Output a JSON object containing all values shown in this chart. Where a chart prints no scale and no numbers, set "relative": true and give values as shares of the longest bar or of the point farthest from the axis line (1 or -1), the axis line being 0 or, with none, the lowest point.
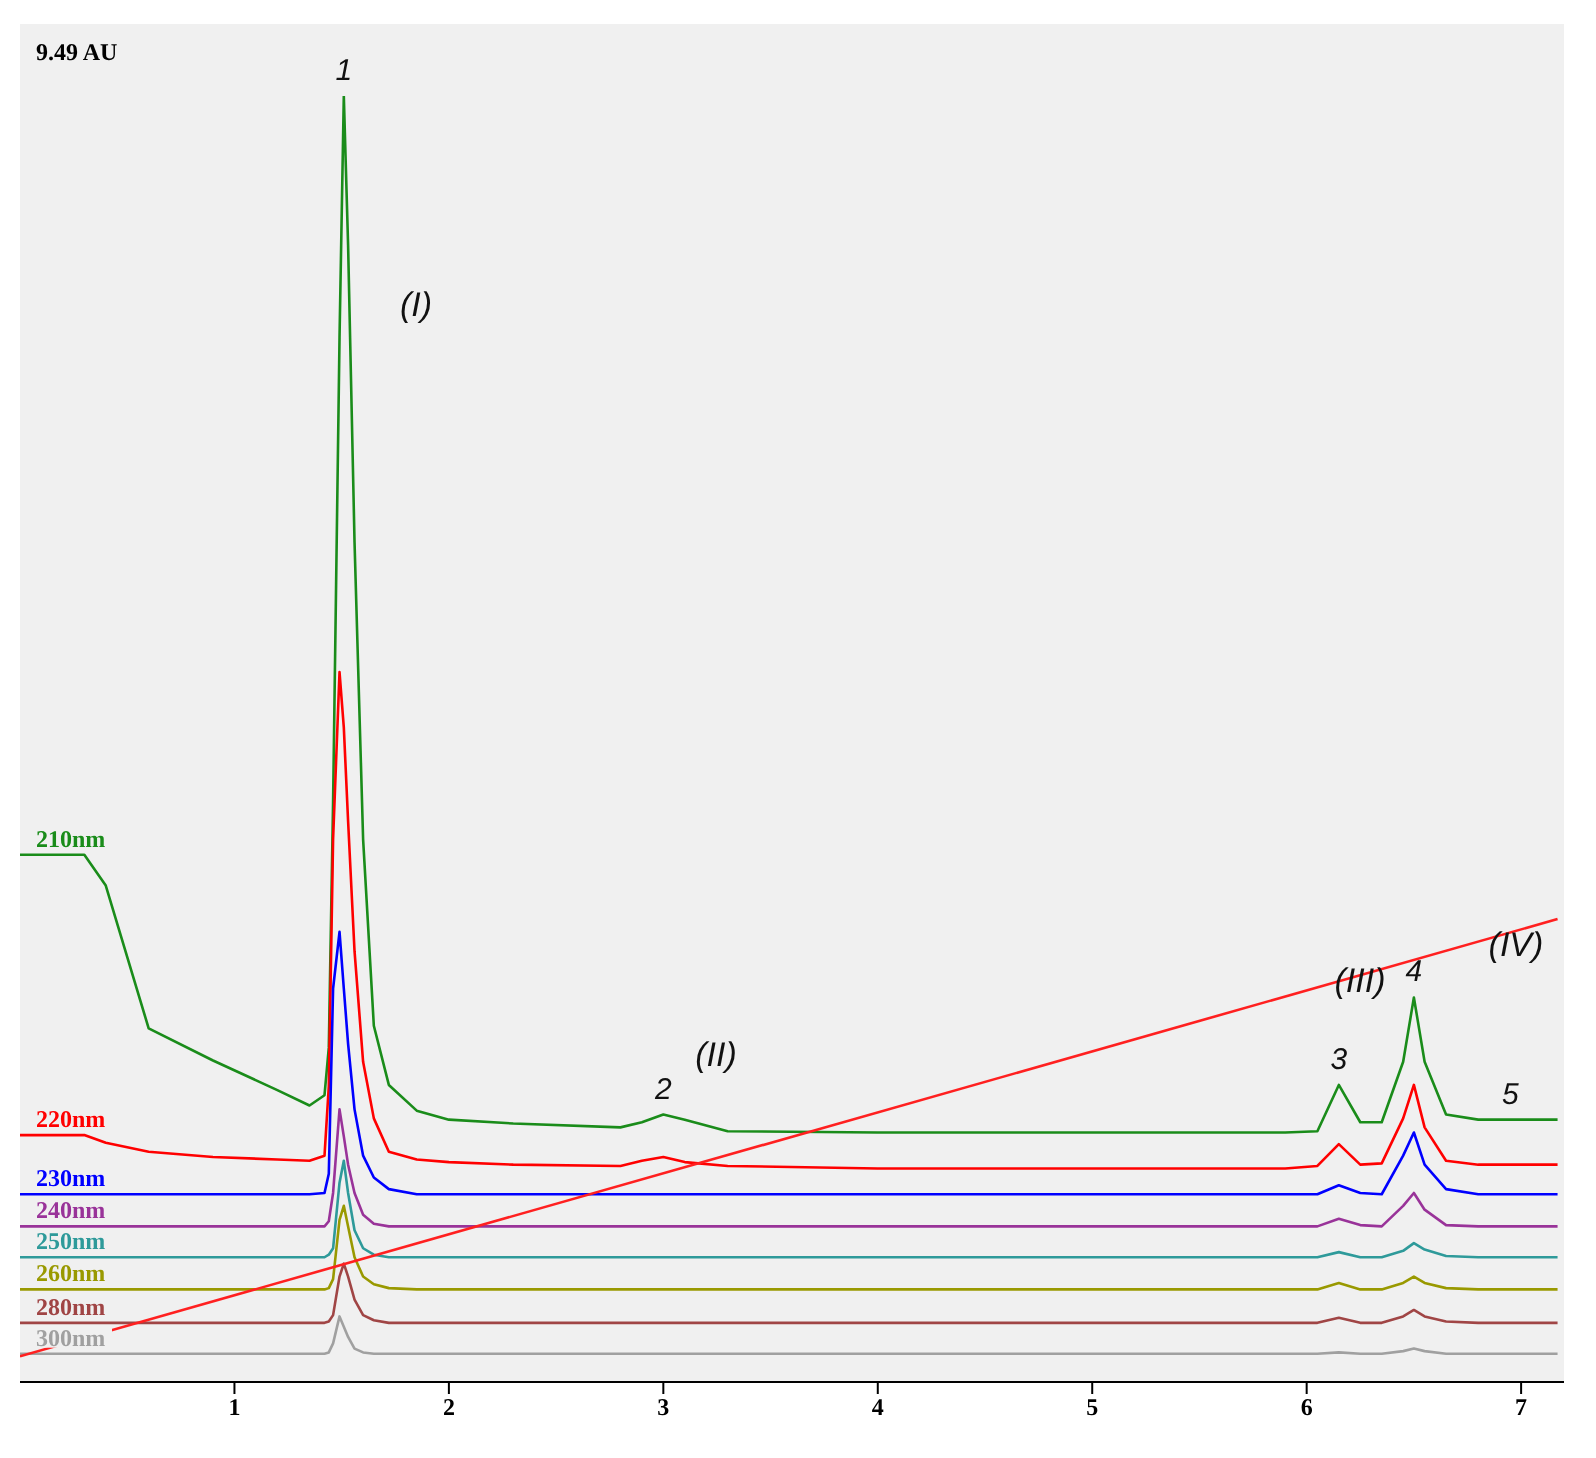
{
  "chart_data": {
    "type": "line",
    "relative": true,
    "xlim": [
      0,
      7.2
    ],
    "xticks": [
      1,
      2,
      3,
      4,
      5,
      6,
      7
    ],
    "grid": false,
    "legend": false,
    "marker": "none",
    "line_style": "solid",
    "x": [
      0,
      0.3,
      0.4,
      0.6,
      0.9,
      1.2,
      1.35,
      1.42,
      1.44,
      1.46,
      1.49,
      1.51,
      1.53,
      1.56,
      1.6,
      1.65,
      1.72,
      1.85,
      2.0,
      2.3,
      2.8,
      2.9,
      3.0,
      3.1,
      3.3,
      4,
      5,
      5.9,
      6.05,
      6.15,
      6.25,
      6.35,
      6.45,
      6.5,
      6.55,
      6.65,
      6.8,
      7.17
    ],
    "series": [
      {
        "name": "210nm",
        "color": "#1a8c1a",
        "values": [
          0.41,
          0.41,
          0.386,
          0.275,
          0.25,
          0.227,
          0.215,
          0.223,
          0.26,
          0.451,
          0.812,
          1,
          0.884,
          0.653,
          0.422,
          0.277,
          0.231,
          0.211,
          0.204,
          0.201,
          0.198,
          0.202,
          0.208,
          0.204,
          0.195,
          0.194,
          0.194,
          0.194,
          0.195,
          0.231,
          0.202,
          0.202,
          0.249,
          0.299,
          0.249,
          0.208,
          0.204,
          0.204
        ]
      },
      {
        "name": "220nm",
        "color": "#ff0000",
        "values": [
          0.192,
          0.192,
          0.186,
          0.179,
          0.175,
          0.173,
          0.172,
          0.176,
          0.23,
          0.422,
          0.552,
          0.509,
          0.436,
          0.335,
          0.249,
          0.205,
          0.179,
          0.173,
          0.171,
          0.169,
          0.168,
          0.172,
          0.175,
          0.171,
          0.168,
          0.166,
          0.166,
          0.166,
          0.168,
          0.185,
          0.169,
          0.17,
          0.205,
          0.231,
          0.198,
          0.172,
          0.169,
          0.169
        ]
      },
      {
        "name": "230nm",
        "color": "#0000ff",
        "values": [
          0.146,
          0.146,
          0.146,
          0.146,
          0.146,
          0.146,
          0.146,
          0.147,
          0.162,
          0.306,
          0.35,
          0.306,
          0.263,
          0.212,
          0.176,
          0.159,
          0.15,
          0.146,
          0.146,
          0.146,
          0.146,
          0.146,
          0.146,
          0.146,
          0.146,
          0.146,
          0.146,
          0.146,
          0.146,
          0.153,
          0.147,
          0.146,
          0.176,
          0.194,
          0.169,
          0.15,
          0.146,
          0.146
        ]
      },
      {
        "name": "240nm",
        "color": "#993399",
        "values": [
          0.121,
          0.121,
          0.121,
          0.121,
          0.121,
          0.121,
          0.121,
          0.121,
          0.125,
          0.147,
          0.212,
          0.191,
          0.169,
          0.147,
          0.13,
          0.123,
          0.121,
          0.121,
          0.121,
          0.121,
          0.121,
          0.121,
          0.121,
          0.121,
          0.121,
          0.121,
          0.121,
          0.121,
          0.121,
          0.127,
          0.122,
          0.121,
          0.137,
          0.147,
          0.134,
          0.122,
          0.121,
          0.121
        ]
      },
      {
        "name": "250nm",
        "color": "#2e9a9a",
        "values": [
          0.097,
          0.097,
          0.097,
          0.097,
          0.097,
          0.097,
          0.097,
          0.097,
          0.099,
          0.104,
          0.155,
          0.172,
          0.147,
          0.118,
          0.104,
          0.099,
          0.097,
          0.097,
          0.097,
          0.097,
          0.097,
          0.097,
          0.097,
          0.097,
          0.097,
          0.097,
          0.097,
          0.097,
          0.097,
          0.101,
          0.097,
          0.097,
          0.102,
          0.108,
          0.103,
          0.098,
          0.097,
          0.097
        ]
      },
      {
        "name": "260nm",
        "color": "#999900",
        "values": [
          0.072,
          0.072,
          0.072,
          0.072,
          0.072,
          0.072,
          0.072,
          0.072,
          0.073,
          0.08,
          0.126,
          0.137,
          0.121,
          0.097,
          0.082,
          0.076,
          0.073,
          0.072,
          0.072,
          0.072,
          0.072,
          0.072,
          0.072,
          0.072,
          0.072,
          0.072,
          0.072,
          0.072,
          0.072,
          0.077,
          0.072,
          0.072,
          0.077,
          0.082,
          0.077,
          0.073,
          0.072,
          0.072
        ]
      },
      {
        "name": "280nm",
        "color": "#a04545",
        "values": [
          0.046,
          0.046,
          0.046,
          0.046,
          0.046,
          0.046,
          0.046,
          0.046,
          0.047,
          0.052,
          0.082,
          0.092,
          0.082,
          0.064,
          0.052,
          0.048,
          0.046,
          0.046,
          0.046,
          0.046,
          0.046,
          0.046,
          0.046,
          0.046,
          0.046,
          0.046,
          0.046,
          0.046,
          0.046,
          0.05,
          0.046,
          0.046,
          0.051,
          0.056,
          0.051,
          0.047,
          0.046,
          0.046
        ]
      },
      {
        "name": "300nm",
        "color": "#a0a0a0",
        "values": [
          0.022,
          0.022,
          0.022,
          0.022,
          0.022,
          0.022,
          0.022,
          0.022,
          0.023,
          0.03,
          0.051,
          0.043,
          0.035,
          0.026,
          0.023,
          0.022,
          0.022,
          0.022,
          0.022,
          0.022,
          0.022,
          0.022,
          0.022,
          0.022,
          0.022,
          0.022,
          0.022,
          0.022,
          0.022,
          0.023,
          0.022,
          0.022,
          0.024,
          0.026,
          0.024,
          0.022,
          0.022,
          0.022
        ]
      },
      {
        "color": "#ff2020",
        "x": [
          0,
          7.17
        ],
        "values": [
          0.02,
          0.36
        ]
      }
    ],
    "annotations": [
      "9.49 AU",
      {
        "text": "1",
        "x": 1.51,
        "y": 1
      },
      {
        "text": "2",
        "x": 3.0,
        "y": 0.208
      },
      {
        "text": "3",
        "x": 6.15,
        "y": 0.231
      },
      {
        "text": "4",
        "x": 6.5,
        "y": 0.299
      },
      {
        "text": "5",
        "x": 6.95,
        "y": 0.204
      },
      "(I)",
      "(II)",
      "(III)",
      "(IV)"
    ]
  }
}
